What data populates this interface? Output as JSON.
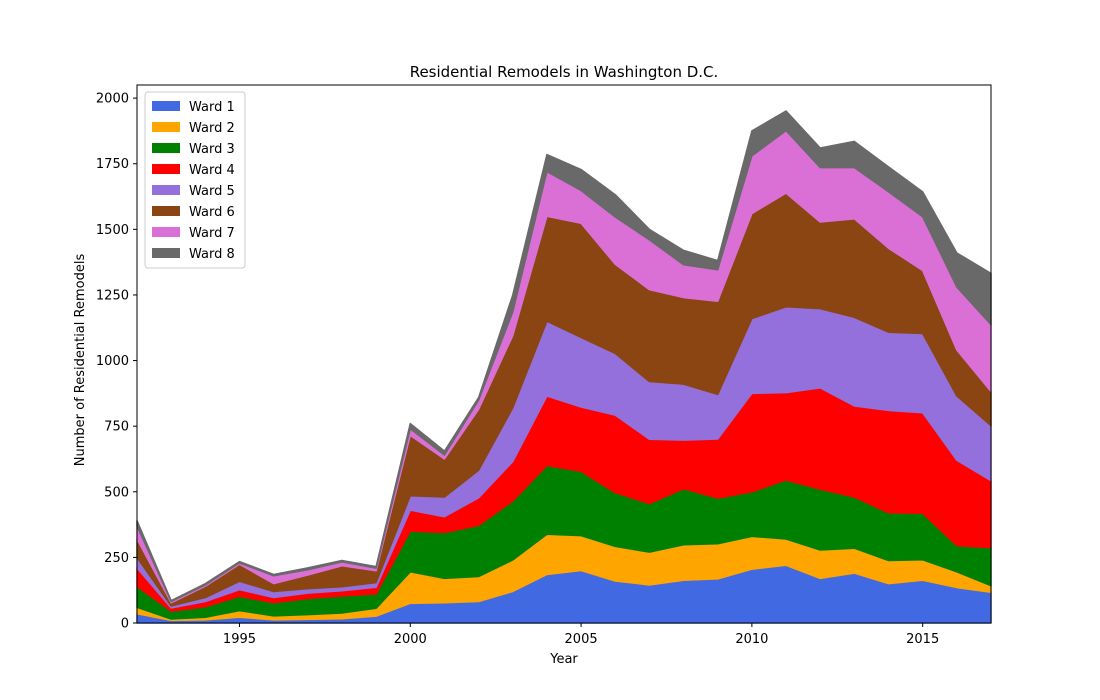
{
  "chart_data": {
    "type": "area",
    "title": "Residential Remodels in Washington D.C.",
    "xlabel": "Year",
    "ylabel": "Number of Residential Remodels",
    "xlim": [
      1992,
      2017
    ],
    "ylim": [
      0,
      2050
    ],
    "xticks": [
      1995,
      2000,
      2005,
      2010,
      2015
    ],
    "yticks": [
      0,
      250,
      500,
      750,
      1000,
      1250,
      1500,
      1750,
      2000
    ],
    "legend_position": "upper-left",
    "x": [
      1992,
      1993,
      1994,
      1995,
      1996,
      1997,
      1998,
      1999,
      2000,
      2001,
      2002,
      2003,
      2004,
      2005,
      2006,
      2007,
      2008,
      2009,
      2010,
      2011,
      2012,
      2013,
      2014,
      2015,
      2016,
      2017
    ],
    "series": [
      {
        "name": "Ward 1",
        "color": "#4169e1",
        "values": [
          35,
          10,
          12,
          22,
          12,
          14,
          16,
          26,
          75,
          77,
          82,
          120,
          185,
          200,
          160,
          145,
          163,
          168,
          205,
          220,
          170,
          190,
          150,
          163,
          135,
          117
        ]
      },
      {
        "name": "Ward 2",
        "color": "#ffa500",
        "values": [
          25,
          5,
          10,
          25,
          15,
          18,
          22,
          30,
          120,
          93,
          95,
          120,
          153,
          133,
          132,
          125,
          135,
          134,
          125,
          100,
          108,
          95,
          88,
          78,
          60,
          25
        ]
      },
      {
        "name": "Ward 3",
        "color": "#008000",
        "values": [
          80,
          30,
          40,
          55,
          50,
          62,
          65,
          55,
          155,
          175,
          195,
          225,
          262,
          245,
          205,
          185,
          214,
          174,
          170,
          225,
          232,
          195,
          182,
          177,
          100,
          145
        ]
      },
      {
        "name": "Ward 4",
        "color": "#ff0000",
        "values": [
          70,
          12,
          20,
          25,
          20,
          20,
          20,
          25,
          80,
          60,
          105,
          150,
          265,
          245,
          295,
          245,
          185,
          225,
          375,
          333,
          386,
          347,
          390,
          383,
          325,
          255
        ]
      },
      {
        "name": "Ward 5",
        "color": "#9370db",
        "values": [
          40,
          8,
          15,
          32,
          23,
          17,
          15,
          18,
          55,
          75,
          105,
          205,
          285,
          265,
          235,
          220,
          213,
          170,
          285,
          327,
          302,
          338,
          298,
          302,
          245,
          210
        ]
      },
      {
        "name": "Ward 6",
        "color": "#8b4513",
        "values": [
          70,
          12,
          43,
          65,
          30,
          52,
          80,
          45,
          230,
          145,
          232,
          275,
          400,
          435,
          340,
          350,
          330,
          355,
          400,
          433,
          330,
          375,
          320,
          240,
          175,
          130
        ]
      },
      {
        "name": "Ward 7",
        "color": "#da70d6",
        "values": [
          50,
          5,
          5,
          5,
          30,
          20,
          15,
          10,
          25,
          15,
          35,
          90,
          170,
          125,
          180,
          190,
          125,
          120,
          220,
          238,
          207,
          195,
          215,
          205,
          240,
          255
        ]
      },
      {
        "name": "Ward 8",
        "color": "#696969",
        "values": [
          20,
          3,
          5,
          5,
          5,
          7,
          5,
          6,
          20,
          15,
          10,
          65,
          65,
          80,
          85,
          40,
          55,
          35,
          95,
          75,
          75,
          100,
          95,
          95,
          130,
          195
        ]
      }
    ]
  }
}
